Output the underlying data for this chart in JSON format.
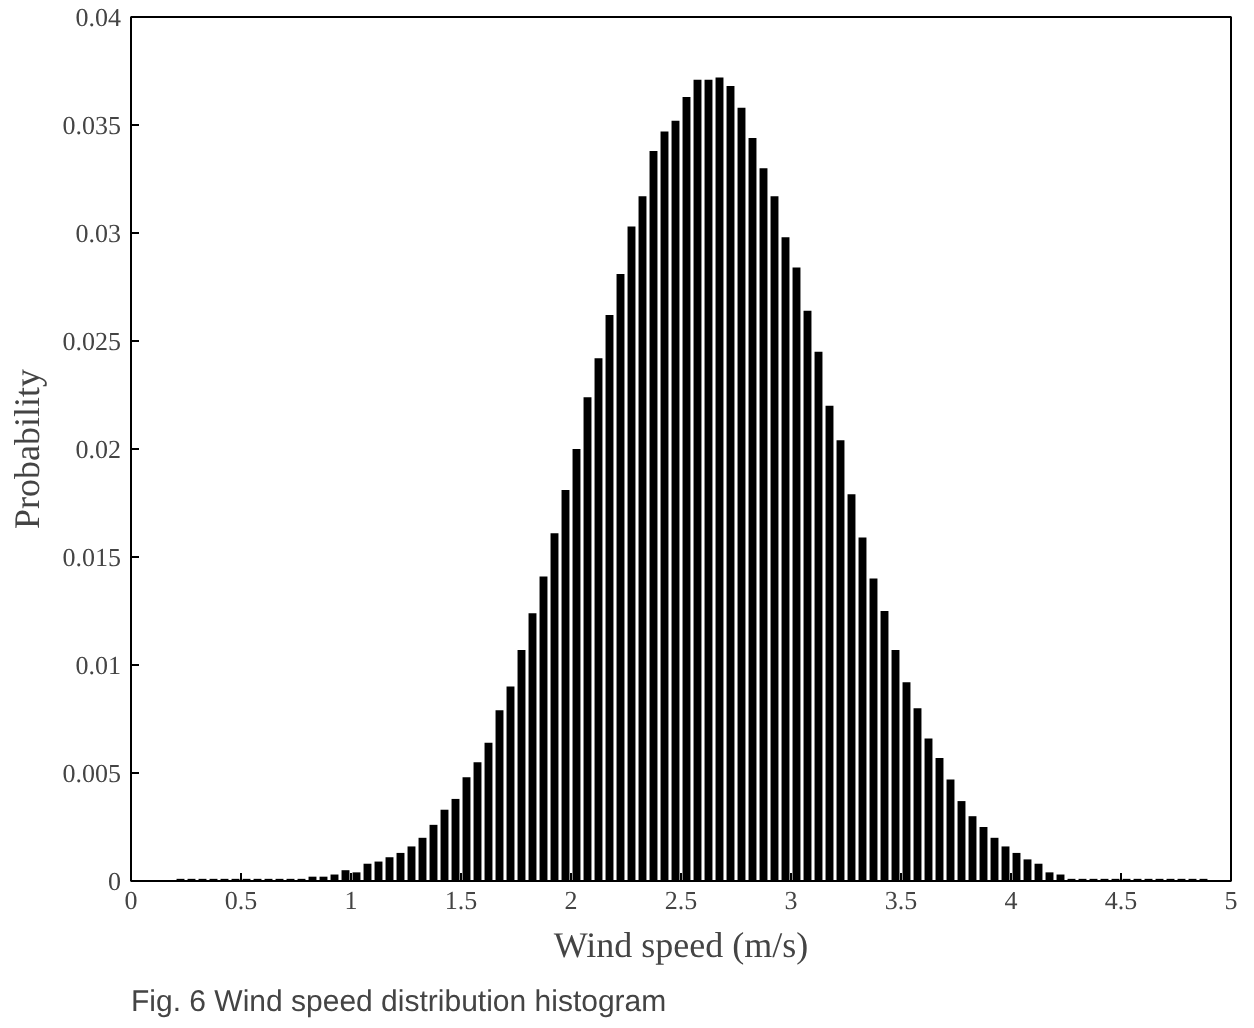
{
  "chart_data": {
    "type": "histogram",
    "xlabel": "Wind speed (m/s)",
    "ylabel": "Probability",
    "annotations": [
      "Fig. 6 Wind speed distribution histogram"
    ],
    "bins": [
      0,
      0.05,
      0.1,
      0.15,
      0.2,
      0.25,
      0.3,
      0.35,
      0.4,
      0.45,
      0.5,
      0.55,
      0.6,
      0.65,
      0.7,
      0.75,
      0.8,
      0.85,
      0.9,
      0.95,
      1,
      1.05,
      1.1,
      1.15,
      1.2,
      1.25,
      1.3,
      1.35,
      1.4,
      1.45,
      1.5,
      1.55,
      1.6,
      1.65,
      1.7,
      1.75,
      1.8,
      1.85,
      1.9,
      1.95,
      2,
      2.05,
      2.1,
      2.15,
      2.2,
      2.25,
      2.3,
      2.35,
      2.4,
      2.45,
      2.5,
      2.55,
      2.6,
      2.65,
      2.7,
      2.75,
      2.8,
      2.85,
      2.9,
      2.95,
      3,
      3.05,
      3.1,
      3.15,
      3.2,
      3.25,
      3.3,
      3.35,
      3.4,
      3.45,
      3.5,
      3.55,
      3.6,
      3.65,
      3.7,
      3.75,
      3.8,
      3.85,
      3.9,
      3.95,
      4,
      4.05,
      4.1,
      4.15,
      4.2,
      4.25,
      4.3,
      4.35,
      4.4,
      4.45,
      4.5,
      4.55,
      4.6,
      4.65,
      4.7,
      4.75,
      4.8,
      4.85,
      4.9,
      4.95,
      5
    ],
    "values": [
      0,
      0,
      0,
      0,
      0.0001,
      0.0001,
      0.0001,
      0.0001,
      0.0001,
      0.0001,
      0.0001,
      0.0001,
      0.0001,
      0.0001,
      0.0001,
      0.0001,
      0.0002,
      0.0002,
      0.0003,
      0.0005,
      0.0004,
      0.0008,
      0.0009,
      0.0011,
      0.0013,
      0.0016,
      0.002,
      0.0026,
      0.0033,
      0.0038,
      0.0048,
      0.0055,
      0.0064,
      0.0079,
      0.009,
      0.0107,
      0.0124,
      0.0141,
      0.0161,
      0.0181,
      0.02,
      0.0224,
      0.0242,
      0.0262,
      0.0281,
      0.0303,
      0.0317,
      0.0338,
      0.0347,
      0.0352,
      0.0363,
      0.0371,
      0.0371,
      0.0372,
      0.0368,
      0.0358,
      0.0344,
      0.033,
      0.0317,
      0.0298,
      0.0284,
      0.0264,
      0.0245,
      0.022,
      0.0204,
      0.0179,
      0.0159,
      0.014,
      0.0125,
      0.0107,
      0.0092,
      0.008,
      0.0066,
      0.0057,
      0.0047,
      0.0037,
      0.003,
      0.0025,
      0.002,
      0.0016,
      0.0013,
      0.001,
      0.0008,
      0.0004,
      0.0003,
      0.0001,
      0.0001,
      0.0001,
      0.0001,
      0.0001,
      0.0001,
      0.0001,
      0.0001,
      0.0001,
      0.0001,
      0.0001,
      0.0001,
      0.0001,
      0,
      0
    ],
    "color": "#000000",
    "xlim": [
      0,
      5
    ],
    "xticks": [
      0,
      0.5,
      1,
      1.5,
      2,
      2.5,
      3,
      3.5,
      4,
      4.5,
      5
    ],
    "ylim": [
      0,
      0.04
    ],
    "yticks": [
      0,
      0.005,
      0.01,
      0.015,
      0.02,
      0.025,
      0.03,
      0.035,
      0.04
    ],
    "grid": false
  }
}
